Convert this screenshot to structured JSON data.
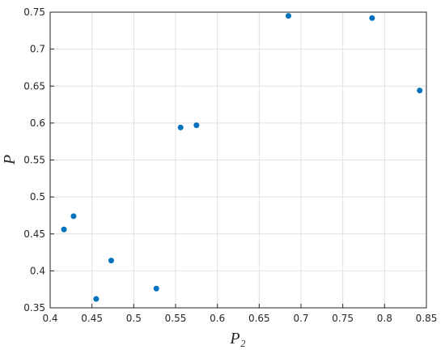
{
  "chart_data": {
    "type": "scatter",
    "xlabel": "P₂",
    "ylabel": "P",
    "x": [
      0.4165,
      0.428,
      0.455,
      0.473,
      0.527,
      0.556,
      0.575,
      0.685,
      0.785,
      0.842
    ],
    "values": [
      0.456,
      0.474,
      0.362,
      0.414,
      0.376,
      0.594,
      0.597,
      0.745,
      0.742,
      0.644
    ],
    "color": "#0072bd",
    "xlim": [
      0.4,
      0.85
    ],
    "xticks": [
      0.4,
      0.45,
      0.5,
      0.55,
      0.6,
      0.65,
      0.7,
      0.75,
      0.8,
      0.85
    ],
    "ylim": [
      0.35,
      0.75
    ],
    "yticks": [
      0.35,
      0.4,
      0.45,
      0.5,
      0.55,
      0.6,
      0.65,
      0.7,
      0.75
    ],
    "grid": true
  }
}
